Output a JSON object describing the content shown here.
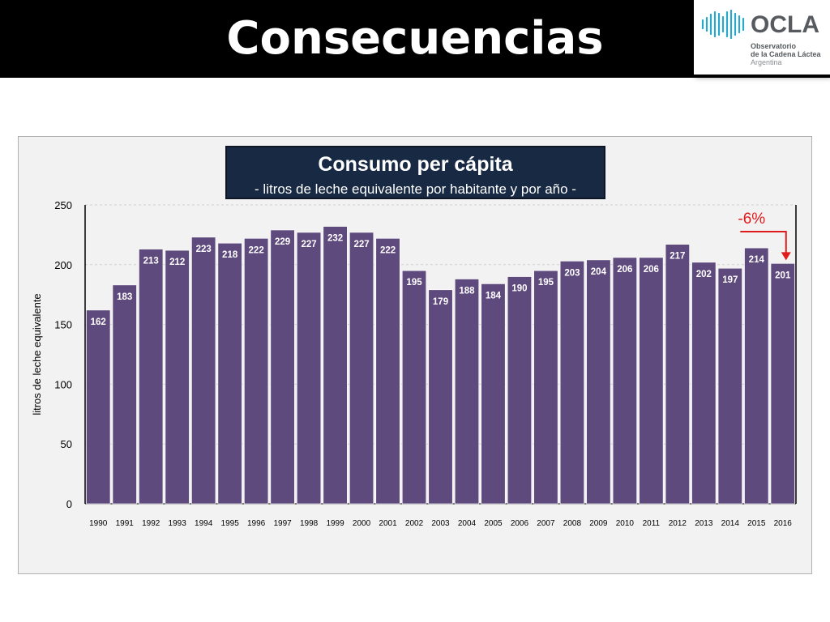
{
  "slide": {
    "title": "Consecuencias"
  },
  "logo": {
    "name": "OCLA",
    "line1": "Observatorio",
    "line2": "de la Cadena Láctea",
    "line3": "Argentina",
    "wave_color": "#2aa7c9"
  },
  "colors": {
    "bar": "#5f4a7e",
    "bar_label": "#ffffff",
    "annotation": "#e01b1b",
    "title_box": "#182943"
  },
  "chart_data": {
    "type": "bar",
    "title": "Consumo per cápita",
    "subtitle": "- litros de leche equivalente por habitante y por año -",
    "xlabel": "",
    "ylabel": "litros de leche equivalente",
    "ylim": [
      0,
      250
    ],
    "yticks": [
      0,
      50,
      100,
      150,
      200,
      250
    ],
    "grid": true,
    "categories": [
      "1990",
      "1991",
      "1992",
      "1993",
      "1994",
      "1995",
      "1996",
      "1997",
      "1998",
      "1999",
      "2000",
      "2001",
      "2002",
      "2003",
      "2004",
      "2005",
      "2006",
      "2007",
      "2008",
      "2009",
      "2010",
      "2011",
      "2012",
      "2013",
      "2014",
      "2015",
      "2016"
    ],
    "values": [
      162,
      183,
      213,
      212,
      223,
      218,
      222,
      229,
      227,
      232,
      227,
      222,
      195,
      179,
      188,
      184,
      190,
      195,
      203,
      204,
      206,
      206,
      217,
      202,
      197,
      214,
      201
    ],
    "annotations": [
      {
        "text": "-6%",
        "from_category": "2015",
        "to_category": "2016"
      }
    ]
  }
}
